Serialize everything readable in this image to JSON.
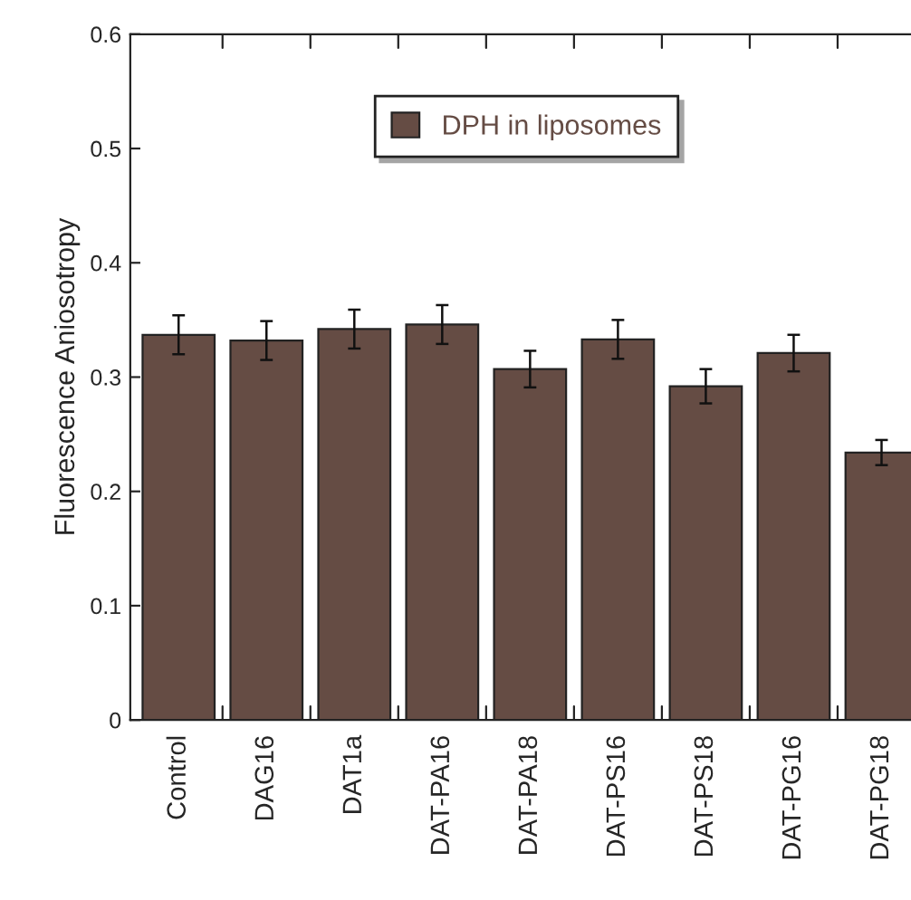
{
  "chart_data": {
    "type": "bar",
    "ylabel": "Fluorescence Aniosotropy",
    "categories": [
      "Control",
      "DAG16",
      "DAT1a",
      "DAT-PA16",
      "DAT-PA18",
      "DAT-PS16",
      "DAT-PS18",
      "DAT-PG16",
      "DAT-PG18"
    ],
    "series": [
      {
        "name": "DPH in liposomes",
        "color": "#654c44",
        "values": [
          0.337,
          0.332,
          0.342,
          0.346,
          0.307,
          0.333,
          0.292,
          0.321,
          0.234
        ],
        "errors": [
          0.017,
          0.017,
          0.017,
          0.017,
          0.016,
          0.017,
          0.015,
          0.016,
          0.011
        ]
      }
    ],
    "ylim": [
      0,
      0.6
    ],
    "yticks": [
      {
        "value": 0,
        "label": "0"
      },
      0.1,
      0.2,
      0.3,
      0.4,
      0.5,
      0.6
    ],
    "legend": "top",
    "grid": false
  }
}
